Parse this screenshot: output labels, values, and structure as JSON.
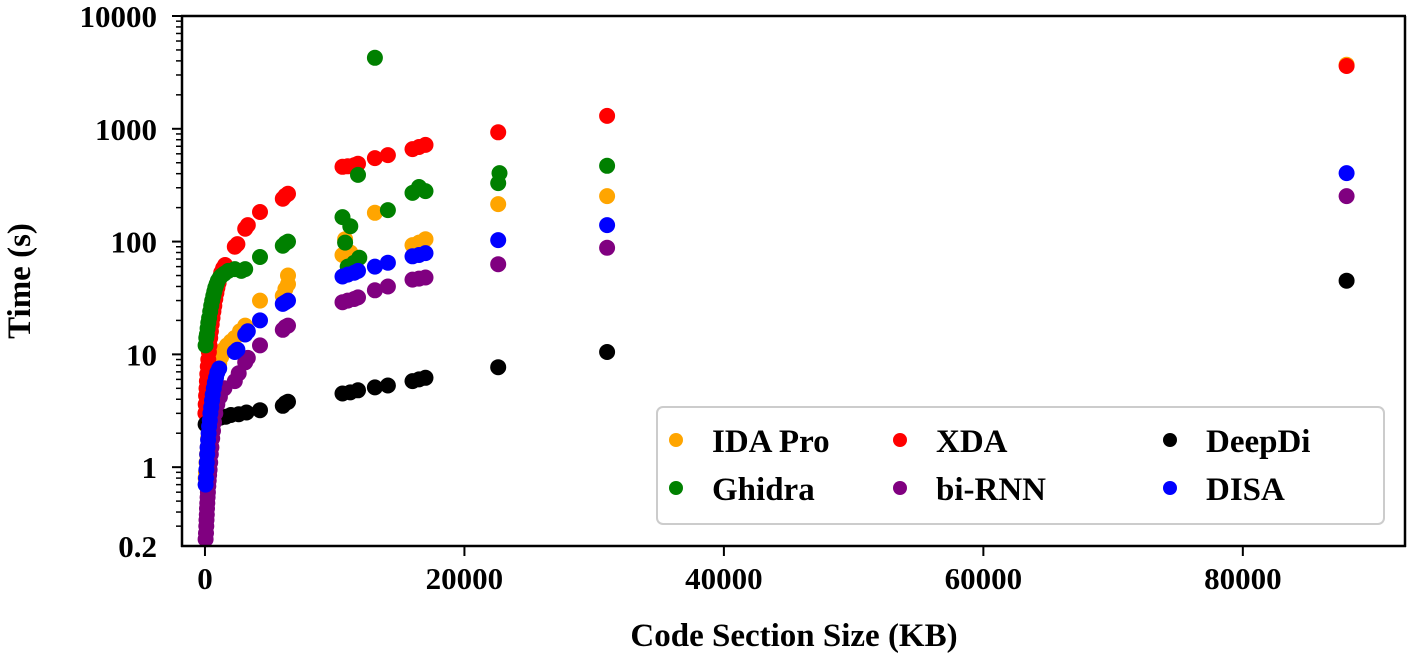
{
  "chart_data": {
    "type": "scatter",
    "title": "",
    "xlabel": "Code Section Size (KB)",
    "ylabel": "Time (s)",
    "xscale": "linear",
    "yscale": "log",
    "xlim": [
      -1770,
      92500
    ],
    "ylim": [
      0.2,
      10000
    ],
    "xticks": [
      0,
      20000,
      40000,
      60000,
      80000
    ],
    "xtick_labels": [
      "0",
      "20000",
      "40000",
      "60000",
      "80000"
    ],
    "yticks": [
      0.2,
      1,
      10,
      100,
      1000,
      10000
    ],
    "ytick_labels": [
      "0.2",
      "1",
      "10",
      "100",
      "1000",
      "10000"
    ],
    "grid": false,
    "legend": {
      "placement": "lower-right",
      "columns": 3
    },
    "series": [
      {
        "name": "IDA Pro",
        "color": "#FFA500",
        "points": [
          [
            50,
            0.8
          ],
          [
            80,
            0.9
          ],
          [
            120,
            1.1
          ],
          [
            160,
            1.3
          ],
          [
            200,
            1.5
          ],
          [
            250,
            1.8
          ],
          [
            300,
            2.1
          ],
          [
            350,
            2.5
          ],
          [
            400,
            2.9
          ],
          [
            480,
            3.4
          ],
          [
            560,
            4.0
          ],
          [
            650,
            4.7
          ],
          [
            750,
            5.5
          ],
          [
            850,
            6.3
          ],
          [
            950,
            7.2
          ],
          [
            1100,
            8.3
          ],
          [
            1250,
            9.5
          ],
          [
            1450,
            11
          ],
          [
            1700,
            12
          ],
          [
            2000,
            13
          ],
          [
            2300,
            14
          ],
          [
            2700,
            16
          ],
          [
            3100,
            18
          ],
          [
            4240,
            30
          ],
          [
            6000,
            33
          ],
          [
            6200,
            38
          ],
          [
            6400,
            42
          ],
          [
            6400,
            50
          ],
          [
            10600,
            76
          ],
          [
            10800,
            105
          ],
          [
            11200,
            80
          ],
          [
            11800,
            72
          ],
          [
            13100,
            180
          ],
          [
            16000,
            93
          ],
          [
            16500,
            98
          ],
          [
            17000,
            105
          ],
          [
            22600,
            215
          ],
          [
            31000,
            253
          ],
          [
            88000,
            3700
          ]
        ]
      },
      {
        "name": "XDA",
        "color": "#FF0000",
        "points": [
          [
            30,
            3.0
          ],
          [
            60,
            3.6
          ],
          [
            90,
            4.3
          ],
          [
            120,
            5.0
          ],
          [
            150,
            5.8
          ],
          [
            180,
            6.7
          ],
          [
            220,
            7.8
          ],
          [
            260,
            9.0
          ],
          [
            300,
            10.5
          ],
          [
            350,
            12
          ],
          [
            400,
            14
          ],
          [
            460,
            16
          ],
          [
            520,
            18.5
          ],
          [
            580,
            21
          ],
          [
            650,
            24
          ],
          [
            720,
            27
          ],
          [
            800,
            31
          ],
          [
            880,
            35
          ],
          [
            960,
            39
          ],
          [
            1050,
            43
          ],
          [
            1150,
            48
          ],
          [
            1250,
            53
          ],
          [
            1400,
            58
          ],
          [
            1550,
            62
          ],
          [
            2300,
            90
          ],
          [
            2500,
            95
          ],
          [
            3100,
            130
          ],
          [
            3300,
            140
          ],
          [
            4240,
            183
          ],
          [
            6000,
            240
          ],
          [
            6200,
            255
          ],
          [
            6400,
            265
          ],
          [
            10600,
            460
          ],
          [
            11000,
            465
          ],
          [
            11500,
            475
          ],
          [
            11800,
            490
          ],
          [
            13100,
            550
          ],
          [
            14100,
            585
          ],
          [
            16000,
            660
          ],
          [
            16500,
            690
          ],
          [
            17000,
            720
          ],
          [
            22600,
            930
          ],
          [
            31000,
            1300
          ],
          [
            88000,
            3600
          ]
        ]
      },
      {
        "name": "DeepDi",
        "color": "#000000",
        "points": [
          [
            50,
            2.4
          ],
          [
            150,
            2.45
          ],
          [
            300,
            2.5
          ],
          [
            500,
            2.6
          ],
          [
            700,
            2.65
          ],
          [
            900,
            2.7
          ],
          [
            1200,
            2.75
          ],
          [
            1600,
            2.8
          ],
          [
            2000,
            2.9
          ],
          [
            2600,
            2.95
          ],
          [
            3200,
            3.05
          ],
          [
            4240,
            3.2
          ],
          [
            6000,
            3.5
          ],
          [
            6200,
            3.7
          ],
          [
            6400,
            3.8
          ],
          [
            10600,
            4.5
          ],
          [
            11200,
            4.6
          ],
          [
            11800,
            4.8
          ],
          [
            13100,
            5.1
          ],
          [
            14100,
            5.3
          ],
          [
            16000,
            5.8
          ],
          [
            16500,
            6.0
          ],
          [
            17000,
            6.2
          ],
          [
            22600,
            7.7
          ],
          [
            31000,
            10.5
          ],
          [
            88000,
            45
          ]
        ]
      },
      {
        "name": "Ghidra",
        "color": "#008000",
        "points": [
          [
            50,
            12
          ],
          [
            100,
            14
          ],
          [
            150,
            15
          ],
          [
            200,
            17
          ],
          [
            260,
            19
          ],
          [
            320,
            21
          ],
          [
            400,
            24
          ],
          [
            480,
            27
          ],
          [
            560,
            30
          ],
          [
            640,
            33
          ],
          [
            720,
            36
          ],
          [
            800,
            39
          ],
          [
            900,
            42
          ],
          [
            1000,
            45
          ],
          [
            1150,
            48
          ],
          [
            1300,
            50
          ],
          [
            1500,
            52
          ],
          [
            1800,
            55
          ],
          [
            2300,
            57
          ],
          [
            2800,
            55
          ],
          [
            3100,
            57
          ],
          [
            4240,
            73
          ],
          [
            6000,
            92
          ],
          [
            6200,
            97
          ],
          [
            6400,
            100
          ],
          [
            10600,
            165
          ],
          [
            10800,
            98
          ],
          [
            11000,
            60
          ],
          [
            11200,
            137
          ],
          [
            11500,
            65
          ],
          [
            11800,
            390
          ],
          [
            11900,
            72
          ],
          [
            13100,
            4260
          ],
          [
            14100,
            190
          ],
          [
            16000,
            270
          ],
          [
            16500,
            305
          ],
          [
            17000,
            280
          ],
          [
            22600,
            330
          ],
          [
            22700,
            405
          ],
          [
            31000,
            470
          ]
        ]
      },
      {
        "name": "bi-RNN",
        "color": "#800080",
        "points": [
          [
            50,
            0.23
          ],
          [
            80,
            0.26
          ],
          [
            100,
            0.3
          ],
          [
            120,
            0.34
          ],
          [
            140,
            0.38
          ],
          [
            160,
            0.43
          ],
          [
            180,
            0.48
          ],
          [
            200,
            0.54
          ],
          [
            230,
            0.6
          ],
          [
            260,
            0.68
          ],
          [
            290,
            0.76
          ],
          [
            320,
            0.85
          ],
          [
            360,
            0.95
          ],
          [
            400,
            1.1
          ],
          [
            450,
            1.3
          ],
          [
            500,
            1.5
          ],
          [
            560,
            1.8
          ],
          [
            620,
            2.1
          ],
          [
            700,
            2.5
          ],
          [
            800,
            3.0
          ],
          [
            950,
            3.6
          ],
          [
            1150,
            4.2
          ],
          [
            1500,
            5.0
          ],
          [
            2300,
            5.8
          ],
          [
            2600,
            6.8
          ],
          [
            3100,
            8.5
          ],
          [
            3300,
            9.3
          ],
          [
            4240,
            12
          ],
          [
            6000,
            16.5
          ],
          [
            6200,
            17.5
          ],
          [
            6400,
            18
          ],
          [
            10600,
            29
          ],
          [
            11000,
            30
          ],
          [
            11500,
            31
          ],
          [
            11800,
            32
          ],
          [
            13100,
            37
          ],
          [
            14100,
            40
          ],
          [
            16000,
            46
          ],
          [
            16500,
            47
          ],
          [
            17000,
            48
          ],
          [
            22600,
            63
          ],
          [
            31000,
            88
          ],
          [
            88000,
            253
          ]
        ]
      },
      {
        "name": "DISA",
        "color": "#0000FF",
        "points": [
          [
            50,
            0.7
          ],
          [
            80,
            0.8
          ],
          [
            110,
            0.95
          ],
          [
            140,
            1.1
          ],
          [
            170,
            1.3
          ],
          [
            200,
            1.5
          ],
          [
            240,
            1.75
          ],
          [
            280,
            2.0
          ],
          [
            320,
            2.3
          ],
          [
            370,
            2.6
          ],
          [
            420,
            3.0
          ],
          [
            480,
            3.4
          ],
          [
            540,
            3.9
          ],
          [
            600,
            4.4
          ],
          [
            680,
            5.0
          ],
          [
            760,
            5.6
          ],
          [
            850,
            6.2
          ],
          [
            950,
            6.9
          ],
          [
            1100,
            7.5
          ],
          [
            2300,
            10.5
          ],
          [
            2500,
            11
          ],
          [
            3100,
            15
          ],
          [
            3300,
            16
          ],
          [
            4240,
            20
          ],
          [
            6000,
            28
          ],
          [
            6200,
            29
          ],
          [
            6400,
            30
          ],
          [
            10600,
            49
          ],
          [
            11000,
            51
          ],
          [
            11500,
            53
          ],
          [
            11800,
            55
          ],
          [
            13100,
            60
          ],
          [
            14100,
            65
          ],
          [
            16000,
            74
          ],
          [
            16500,
            76
          ],
          [
            17000,
            79
          ],
          [
            22600,
            103
          ],
          [
            31000,
            140
          ],
          [
            88000,
            405
          ]
        ]
      }
    ],
    "legend_order": [
      "IDA Pro",
      "XDA",
      "DeepDi",
      "Ghidra",
      "bi-RNN",
      "DISA"
    ]
  }
}
